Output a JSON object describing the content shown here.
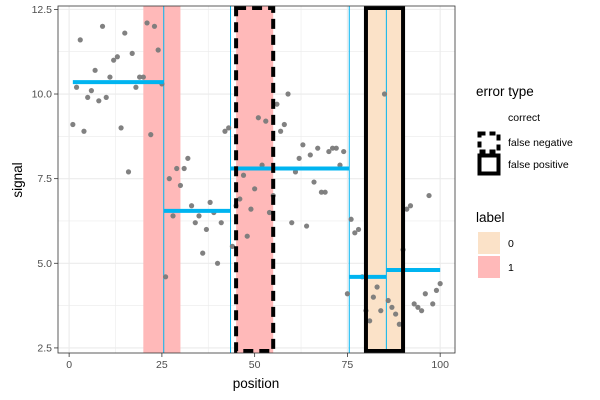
{
  "chart_data": {
    "type": "scatter",
    "xlabel": "position",
    "ylabel": "signal",
    "xlim": [
      -3,
      104
    ],
    "ylim": [
      2.35,
      12.6
    ],
    "x_ticks": [
      0,
      25,
      50,
      75,
      100
    ],
    "x_tick_labels": [
      "0",
      "25",
      "50",
      "75",
      "100"
    ],
    "y_ticks": [
      2.5,
      5.0,
      7.5,
      10.0,
      12.5
    ],
    "y_tick_labels": [
      "2.5",
      "5.0",
      "7.5",
      "10.0",
      "12.5"
    ],
    "grid": true,
    "legend_position": "right",
    "colors": {
      "points": "#7a7a7a",
      "segments": "#00b4f0",
      "label_0": "#fbe2c8",
      "label_1": "#ffb9b9",
      "error_border": "#000000",
      "grid": "#ebebeb",
      "panel_border": "#333333"
    },
    "points": {
      "x": [
        1,
        2,
        3,
        4,
        5,
        6,
        7,
        8,
        9,
        10,
        11,
        12,
        13,
        14,
        15,
        16,
        17,
        18,
        19,
        20,
        21,
        22,
        23,
        24,
        25,
        26,
        27,
        28,
        29,
        30,
        31,
        32,
        33,
        34,
        35,
        36,
        37,
        38,
        39,
        40,
        41,
        42,
        43,
        44,
        45,
        46,
        47,
        48,
        49,
        50,
        51,
        52,
        53,
        54,
        55,
        56,
        57,
        58,
        59,
        60,
        61,
        62,
        63,
        64,
        65,
        66,
        67,
        68,
        69,
        70,
        71,
        72,
        73,
        74,
        75,
        76,
        77,
        78,
        79,
        80,
        81,
        82,
        83,
        84,
        85,
        86,
        87,
        88,
        89,
        90,
        91,
        92,
        93,
        94,
        95,
        96,
        97,
        98,
        99,
        100
      ],
      "y": [
        9.1,
        10.2,
        11.6,
        8.9,
        9.9,
        10.1,
        10.7,
        9.8,
        12.0,
        9.9,
        10.5,
        11.0,
        11.1,
        9.0,
        11.8,
        7.7,
        11.2,
        10.2,
        10.5,
        10.5,
        12.1,
        8.8,
        12.0,
        11.3,
        10.3,
        4.6,
        7.5,
        6.4,
        7.8,
        7.3,
        7.8,
        8.1,
        6.7,
        6.2,
        6.4,
        5.3,
        6.0,
        6.8,
        6.5,
        5.0,
        6.2,
        8.9,
        9.0,
        5.5,
        6.7,
        6.9,
        7.6,
        5.8,
        6.6,
        7.2,
        9.3,
        7.9,
        9.2,
        6.5,
        7.0,
        9.7,
        8.9,
        9.1,
        10.0,
        6.2,
        7.7,
        8.1,
        8.5,
        6.1,
        8.2,
        7.4,
        8.4,
        7.1,
        7.1,
        8.3,
        8.4,
        8.4,
        7.9,
        8.3,
        4.1,
        6.3,
        5.9,
        6.0,
        4.6,
        3.6,
        3.3,
        4.0,
        4.3,
        3.6,
        10.0,
        3.9,
        3.7,
        3.5,
        3.2,
        5.4,
        6.6,
        6.7,
        3.8,
        3.7,
        3.6,
        4.1,
        7.0,
        3.8,
        4.2,
        4.4
      ]
    },
    "segments": [
      {
        "x_start": 1,
        "x_end": 25.5,
        "y": 10.35
      },
      {
        "x_start": 25.5,
        "x_end": 43.5,
        "y": 6.55
      },
      {
        "x_start": 43.5,
        "x_end": 75.5,
        "y": 7.8
      },
      {
        "x_start": 75.5,
        "x_end": 85.5,
        "y": 4.6
      },
      {
        "x_start": 85.5,
        "x_end": 100,
        "y": 4.8
      }
    ],
    "changepoints": [
      25.5,
      43.5,
      75.5,
      85.5
    ],
    "label_regions": [
      {
        "x_start": 20,
        "x_end": 30,
        "label": "1"
      },
      {
        "x_start": 45,
        "x_end": 55,
        "label": "1"
      },
      {
        "x_start": 80,
        "x_end": 90,
        "label": "0"
      }
    ],
    "error_regions": [
      {
        "x_start": 45,
        "x_end": 55,
        "type": "false negative"
      },
      {
        "x_start": 80,
        "x_end": 90,
        "type": "false positive"
      }
    ],
    "legends": {
      "error_type": {
        "title": "error type",
        "entries": [
          "correct",
          "false negative",
          "false positive"
        ]
      },
      "label": {
        "title": "label",
        "entries": [
          "0",
          "1"
        ]
      }
    }
  }
}
